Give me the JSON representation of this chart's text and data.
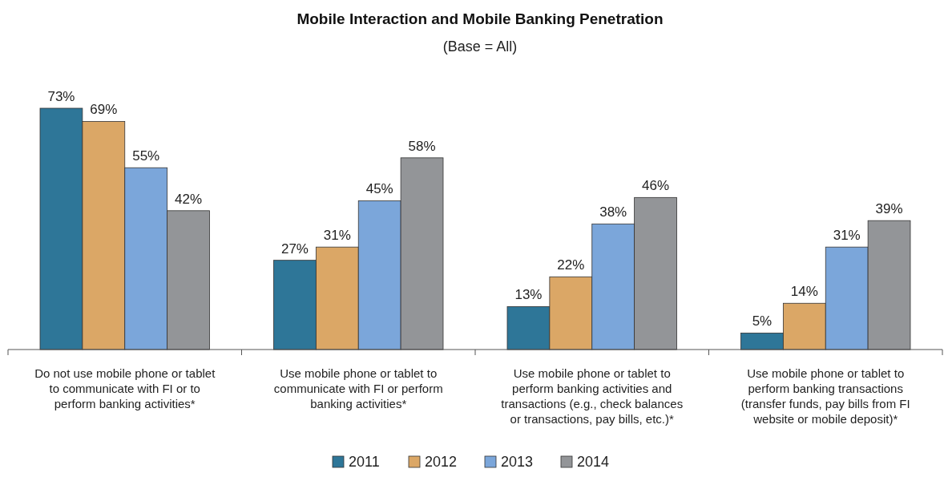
{
  "chart_data": {
    "type": "bar",
    "title": "Mobile Interaction and Mobile Banking Penetration",
    "subtitle": "(Base = All)",
    "categories": [
      "Do not use mobile phone or tablet to communicate with FI or to perform banking activities*",
      "Use mobile phone or tablet to communicate with FI or perform banking activities*",
      "Use mobile phone or tablet to perform banking activities and transactions (e.g., check balances or transactions, pay bills, etc.)*",
      "Use mobile phone or tablet to perform banking transactions (transfer funds, pay bills from FI website or mobile deposit)*"
    ],
    "series": [
      {
        "name": "2011",
        "color": "#2e7698",
        "values": [
          73,
          27,
          13,
          5
        ],
        "value_labels": [
          "73%",
          "27%",
          "13%",
          "5%"
        ]
      },
      {
        "name": "2012",
        "color": "#dba766",
        "values": [
          69,
          31,
          22,
          14
        ],
        "value_labels": [
          "69%",
          "31%",
          "22%",
          "14%"
        ]
      },
      {
        "name": "2013",
        "color": "#7ba6da",
        "values": [
          55,
          45,
          38,
          31
        ],
        "value_labels": [
          "55%",
          "45%",
          "38%",
          "31%"
        ]
      },
      {
        "name": "2014",
        "color": "#939598",
        "values": [
          42,
          58,
          46,
          39
        ],
        "value_labels": [
          "42%",
          "58%",
          "46%",
          "39%"
        ]
      }
    ],
    "legend": "bottom"
  }
}
